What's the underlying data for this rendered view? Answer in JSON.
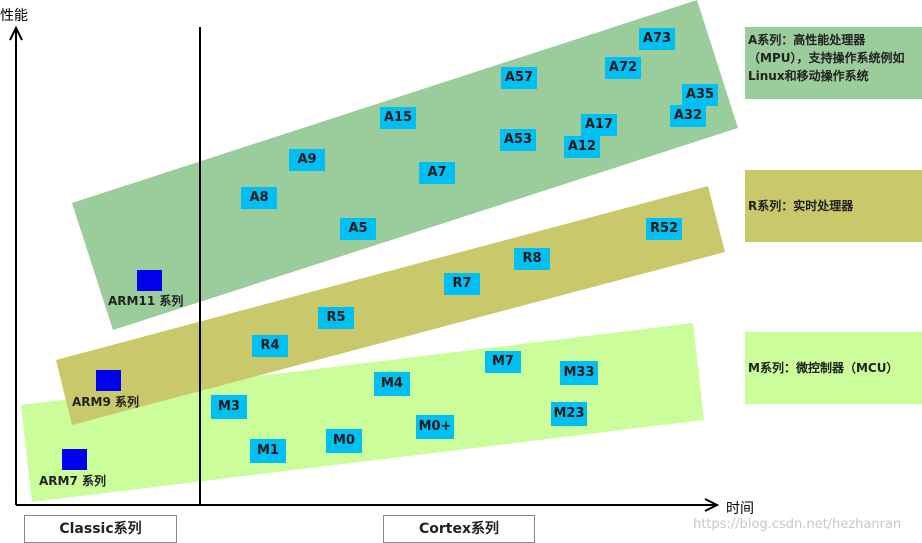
{
  "axes": {
    "y_label": "性能",
    "x_label": "时间"
  },
  "colors": {
    "a_band": "#9bcc9b",
    "r_band": "#c9c96b",
    "m_band": "#cbfd9b",
    "chip": "#00bff3",
    "arm_box": "#0000ee"
  },
  "a_series": [
    "A73",
    "A72",
    "A57",
    "A35",
    "A32",
    "A17",
    "A12",
    "A53",
    "A15",
    "A9",
    "A7",
    "A8",
    "A5"
  ],
  "r_series": [
    "R52",
    "R8",
    "R7",
    "R5",
    "R4"
  ],
  "m_series": [
    "M7",
    "M33",
    "M4",
    "M3",
    "M23",
    "M0+",
    "M0",
    "M1"
  ],
  "classic": [
    "ARM11 系列",
    "ARM9 系列",
    "ARM7 系列"
  ],
  "legends": {
    "a": "A系列：高性能处理器（MPU），支持操作系统例如Linux和移动操作系统",
    "r": "R系列：实时处理器",
    "m": "M系列：微控制器（MCU）"
  },
  "bottom": {
    "classic": "Classic系列",
    "cortex": "Cortex系列"
  },
  "watermark": "https://blog.csdn.net/hezhanran"
}
